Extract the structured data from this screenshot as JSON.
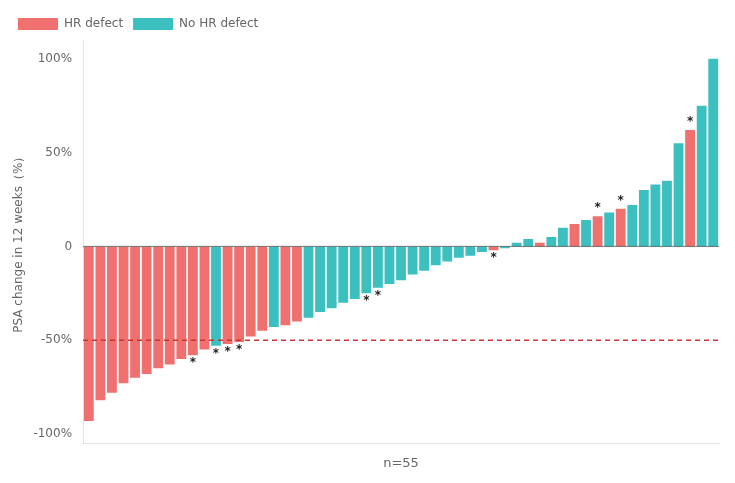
{
  "chart_data": {
    "type": "bar",
    "ylabel": "PSA change in 12 weeks（%）",
    "xlabel": "n=55",
    "categories": [
      null,
      null,
      null,
      null,
      null,
      null,
      null,
      null,
      null,
      null,
      null,
      null,
      null,
      null,
      null,
      null,
      null,
      null,
      null,
      null,
      null,
      null,
      null,
      null,
      null,
      null,
      null,
      null,
      null,
      null,
      null,
      null,
      null,
      null,
      null,
      null,
      null,
      null,
      null,
      null,
      null,
      null,
      null,
      null,
      null,
      null,
      null,
      null,
      null,
      null,
      null,
      null,
      null,
      null,
      null
    ],
    "series": [
      {
        "name": "HR defect",
        "color": "#F07070",
        "values": [
          -93,
          -82,
          -78,
          -73,
          -70,
          -68,
          -65,
          -63,
          -60,
          -58,
          -55,
          null,
          -52,
          -51,
          -48,
          -45,
          null,
          -42,
          -40,
          null,
          null,
          null,
          null,
          null,
          null,
          null,
          null,
          null,
          null,
          null,
          null,
          null,
          null,
          null,
          null,
          -2,
          null,
          null,
          null,
          2,
          null,
          null,
          12,
          null,
          16,
          null,
          20,
          null,
          null,
          null,
          null,
          null,
          62,
          null,
          null
        ]
      },
      {
        "name": "No HR defect",
        "color": "#3BBFBF",
        "values": [
          null,
          null,
          null,
          null,
          null,
          null,
          null,
          null,
          null,
          null,
          null,
          -53,
          null,
          null,
          null,
          null,
          -43,
          null,
          null,
          -38,
          -35,
          -33,
          -30,
          -28,
          -25,
          -22,
          -20,
          -18,
          -15,
          -13,
          -10,
          -8,
          -6,
          -5,
          -3,
          null,
          -1,
          2,
          4,
          null,
          5,
          10,
          null,
          14,
          null,
          18,
          null,
          22,
          30,
          33,
          35,
          55,
          null,
          75,
          100
        ]
      }
    ],
    "annotations": [
      {
        "text": "*",
        "index": 9
      },
      {
        "text": "*",
        "index": 11
      },
      {
        "text": "*",
        "index": 12
      },
      {
        "text": "*",
        "index": 13
      },
      {
        "text": "*",
        "index": 24
      },
      {
        "text": "*",
        "index": 25
      },
      {
        "text": "*",
        "index": 35
      },
      {
        "text": "*",
        "index": 44
      },
      {
        "text": "*",
        "index": 46
      },
      {
        "text": "*",
        "index": 52
      }
    ],
    "reference_lines": [
      {
        "y": -50,
        "color": "#CC3333",
        "line_style": "dashed"
      },
      {
        "y": 0,
        "color": "#555555",
        "line_style": "solid"
      }
    ],
    "ylim": [
      -105,
      110
    ],
    "yticks": [
      {
        "value": -100,
        "label": "-100%"
      },
      {
        "value": -50,
        "label": "-50%"
      },
      0,
      {
        "value": 50,
        "label": "50%"
      },
      {
        "value": 100,
        "label": "100%"
      }
    ],
    "grid": false,
    "legend": "upper left",
    "tick_labels": "y"
  }
}
